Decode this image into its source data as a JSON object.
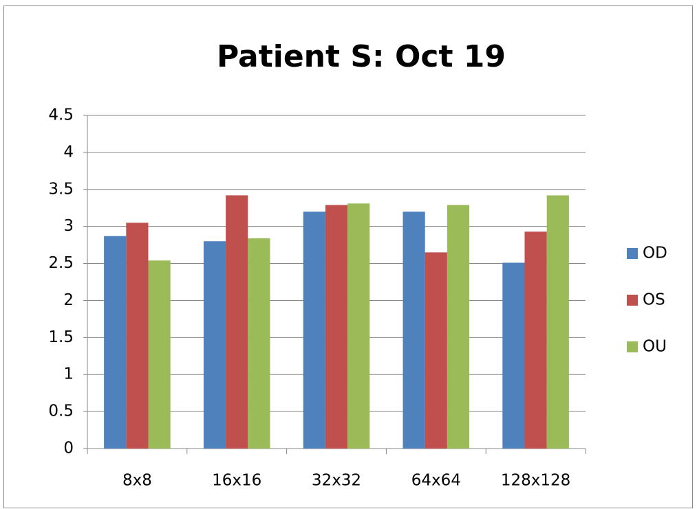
{
  "chart_data": {
    "type": "bar",
    "title": "Patient S: Oct 19",
    "categories": [
      "8x8",
      "16x16",
      "32x32",
      "64x64",
      "128x128"
    ],
    "series": [
      {
        "name": "OD",
        "color": "#4f81bd",
        "values": [
          2.87,
          2.8,
          3.2,
          3.2,
          2.51
        ]
      },
      {
        "name": "OS",
        "color": "#c0504d",
        "values": [
          3.05,
          3.42,
          3.29,
          2.65,
          2.93
        ]
      },
      {
        "name": "OU",
        "color": "#9bbb59",
        "values": [
          2.54,
          2.84,
          3.31,
          3.29,
          3.42
        ]
      }
    ],
    "ylim": [
      0,
      4.5
    ],
    "yticks": [
      0,
      0.5,
      1,
      1.5,
      2,
      2.5,
      3,
      3.5,
      4,
      4.5
    ],
    "grid": true,
    "legend": "right"
  }
}
